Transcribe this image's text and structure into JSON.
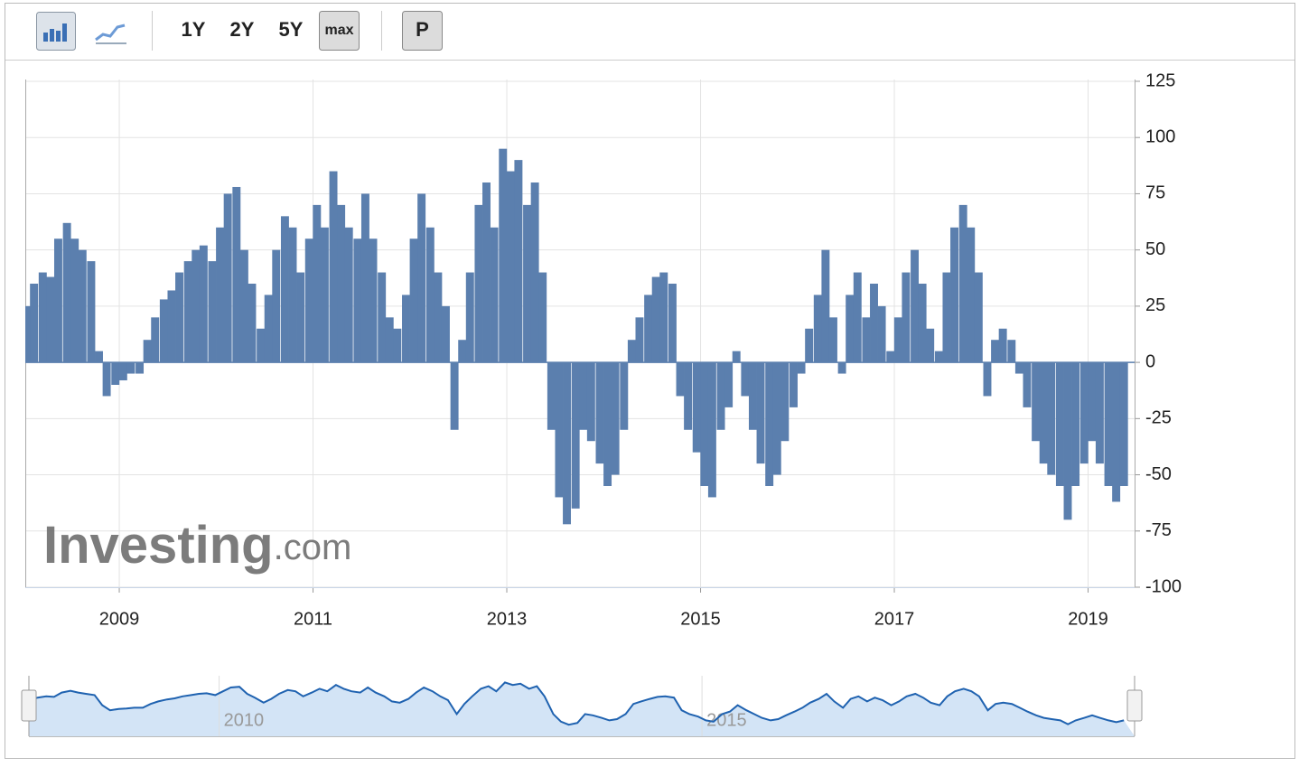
{
  "toolbar": {
    "buttons": [
      "1Y",
      "2Y",
      "5Y",
      "max",
      "P"
    ]
  },
  "watermark": {
    "brand": "Investing",
    "suffix": ".com"
  },
  "chart_data": {
    "type": "bar",
    "color": "#5b7fae",
    "grid": true,
    "x": [
      2008.04,
      2008.12,
      2008.21,
      2008.29,
      2008.37,
      2008.46,
      2008.54,
      2008.62,
      2008.71,
      2008.79,
      2008.87,
      2008.96,
      2009.04,
      2009.12,
      2009.21,
      2009.29,
      2009.37,
      2009.46,
      2009.54,
      2009.62,
      2009.71,
      2009.79,
      2009.87,
      2009.96,
      2010.04,
      2010.12,
      2010.21,
      2010.29,
      2010.37,
      2010.46,
      2010.54,
      2010.62,
      2010.71,
      2010.79,
      2010.87,
      2010.96,
      2011.04,
      2011.12,
      2011.21,
      2011.29,
      2011.37,
      2011.46,
      2011.54,
      2011.62,
      2011.71,
      2011.79,
      2011.87,
      2011.96,
      2012.04,
      2012.12,
      2012.21,
      2012.29,
      2012.37,
      2012.46,
      2012.54,
      2012.62,
      2012.71,
      2012.79,
      2012.87,
      2012.96,
      2013.04,
      2013.12,
      2013.21,
      2013.29,
      2013.37,
      2013.46,
      2013.54,
      2013.62,
      2013.71,
      2013.79,
      2013.87,
      2013.96,
      2014.04,
      2014.12,
      2014.21,
      2014.29,
      2014.37,
      2014.46,
      2014.54,
      2014.62,
      2014.71,
      2014.79,
      2014.87,
      2014.96,
      2015.04,
      2015.12,
      2015.21,
      2015.29,
      2015.37,
      2015.46,
      2015.54,
      2015.62,
      2015.71,
      2015.79,
      2015.87,
      2015.96,
      2016.04,
      2016.12,
      2016.21,
      2016.29,
      2016.37,
      2016.46,
      2016.54,
      2016.62,
      2016.71,
      2016.79,
      2016.87,
      2016.96,
      2017.04,
      2017.12,
      2017.21,
      2017.29,
      2017.37,
      2017.46,
      2017.54,
      2017.62,
      2017.71,
      2017.79,
      2017.87,
      2017.96,
      2018.04,
      2018.12,
      2018.21,
      2018.29,
      2018.37,
      2018.46,
      2018.54,
      2018.62,
      2018.71,
      2018.79,
      2018.87,
      2018.96,
      2019.04,
      2019.12,
      2019.21,
      2019.29,
      2019.37
    ],
    "values": [
      25,
      35,
      40,
      38,
      55,
      62,
      55,
      50,
      45,
      5,
      -15,
      -10,
      -8,
      -5,
      -5,
      10,
      20,
      28,
      32,
      40,
      45,
      50,
      52,
      45,
      60,
      75,
      78,
      50,
      35,
      15,
      30,
      50,
      65,
      60,
      40,
      55,
      70,
      60,
      85,
      70,
      60,
      55,
      75,
      55,
      40,
      20,
      15,
      30,
      55,
      75,
      60,
      40,
      25,
      -30,
      10,
      40,
      70,
      80,
      60,
      95,
      85,
      90,
      70,
      80,
      40,
      -30,
      -60,
      -72,
      -65,
      -30,
      -35,
      -45,
      -55,
      -50,
      -30,
      10,
      20,
      30,
      38,
      40,
      35,
      -15,
      -30,
      -40,
      -55,
      -60,
      -30,
      -20,
      5,
      -15,
      -30,
      -45,
      -55,
      -50,
      -35,
      -20,
      -5,
      15,
      30,
      50,
      20,
      -5,
      30,
      40,
      20,
      35,
      25,
      5,
      20,
      40,
      50,
      35,
      15,
      5,
      40,
      60,
      70,
      60,
      40,
      -15,
      10,
      15,
      10,
      -5,
      -20,
      -35,
      -45,
      -50,
      -55,
      -70,
      -55,
      -45,
      -35,
      -45,
      -55,
      -62,
      -55
    ],
    "xlim": [
      2008.03,
      2019.48
    ],
    "xticks": [
      2009,
      2011,
      2013,
      2015,
      2017,
      2019
    ],
    "ylim": [
      -100,
      125
    ],
    "yticks": [
      -100,
      -75,
      -50,
      -25,
      0,
      25,
      50,
      75,
      100,
      125
    ],
    "navigator": {
      "xticks": [
        2010,
        2015
      ],
      "color": "#1f62b0",
      "fill": "#d3e4f6"
    }
  }
}
